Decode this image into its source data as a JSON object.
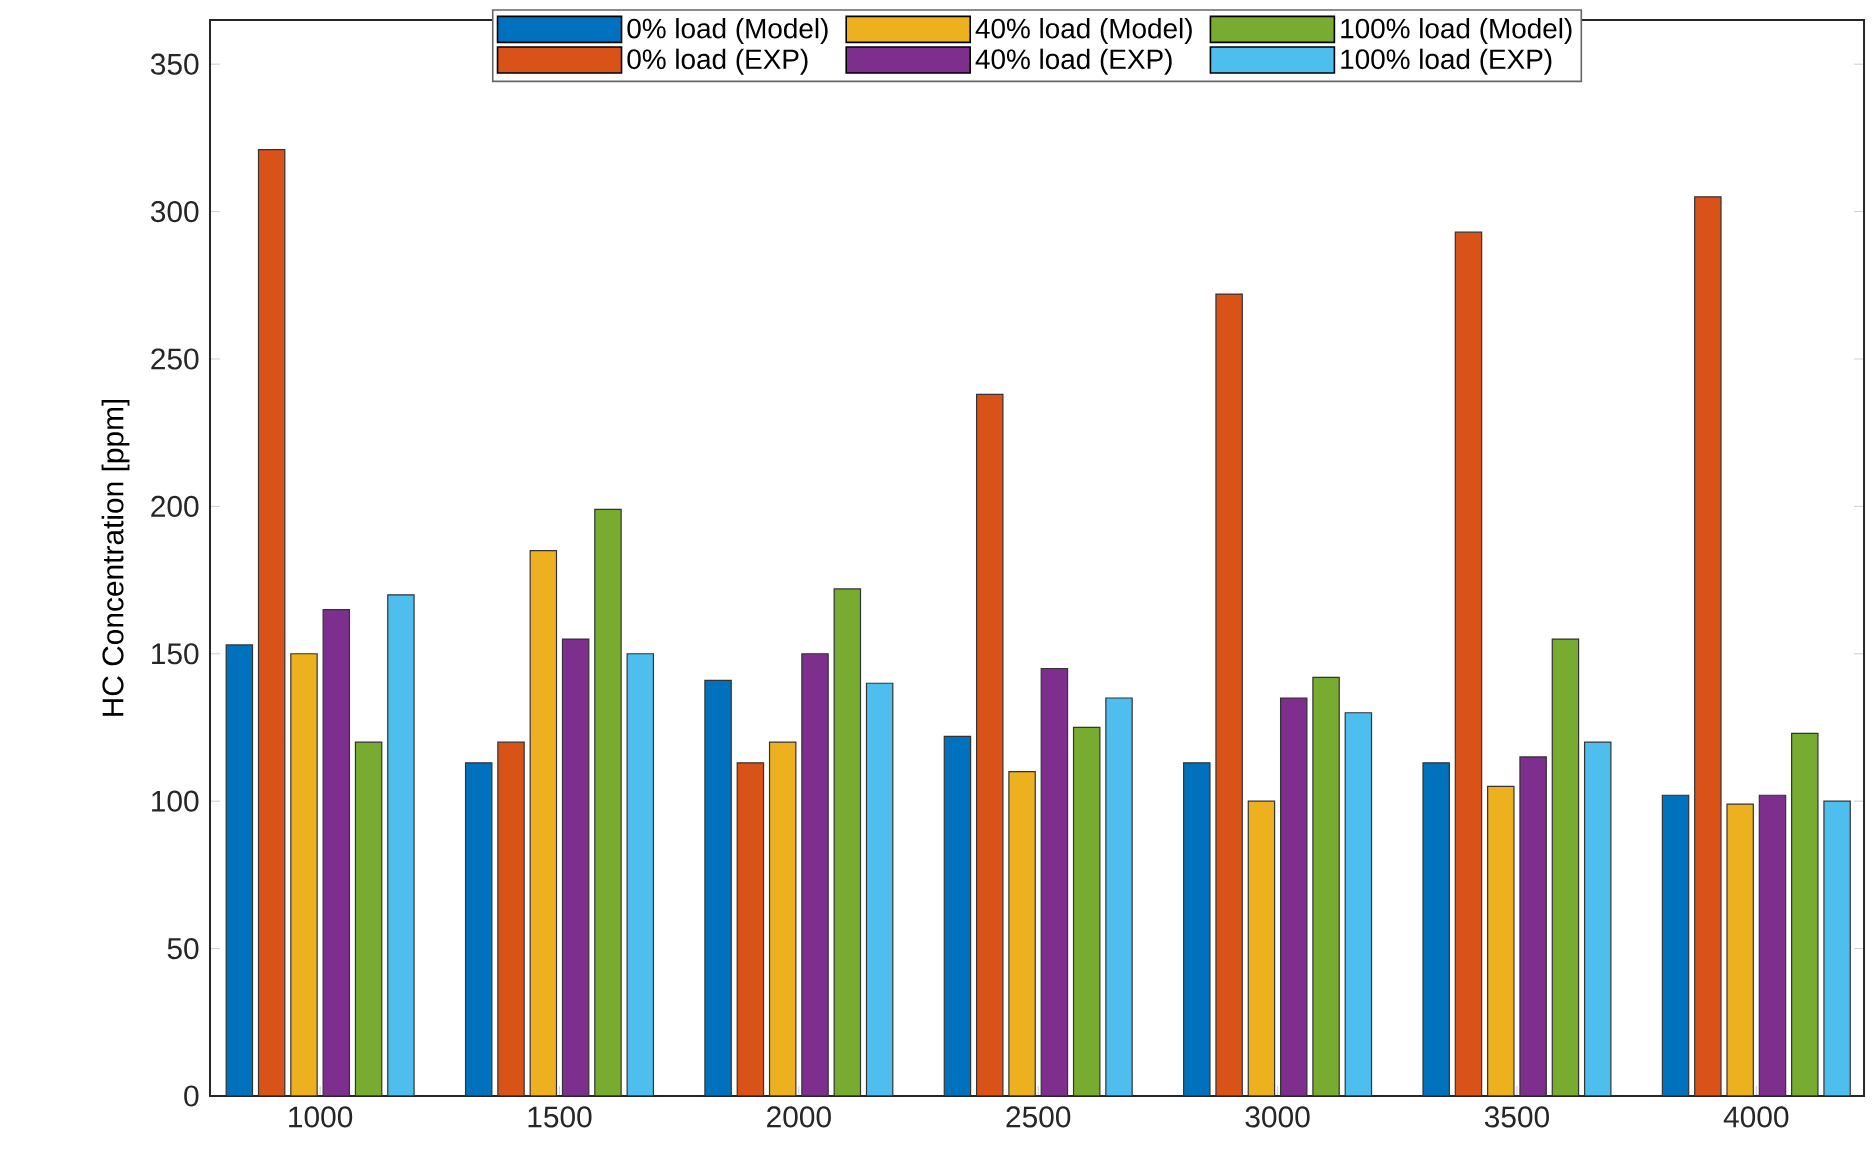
{
  "chart_data": {
    "type": "bar",
    "ylabel": "HC Concentration [ppm]",
    "categories": [
      "1000",
      "1500",
      "2000",
      "2500",
      "3000",
      "3500",
      "4000"
    ],
    "series": [
      {
        "name": "0% load (Model)",
        "color": "#0072bd",
        "values": [
          153,
          113,
          141,
          122,
          113,
          113,
          102
        ]
      },
      {
        "name": "0% load (EXP)",
        "color": "#d95319",
        "values": [
          321,
          120,
          113,
          238,
          272,
          293,
          305
        ]
      },
      {
        "name": "40% load (Model)",
        "color": "#edb120",
        "values": [
          150,
          185,
          120,
          110,
          100,
          105,
          99
        ]
      },
      {
        "name": "40% load (EXP)",
        "color": "#7e2f8e",
        "values": [
          165,
          155,
          150,
          145,
          135,
          115,
          102
        ]
      },
      {
        "name": "100% load (Model)",
        "color": "#77ac30",
        "values": [
          120,
          199,
          172,
          125,
          142,
          155,
          123
        ]
      },
      {
        "name": "100% load (EXP)",
        "color": "#4dbeee",
        "values": [
          170,
          150,
          140,
          135,
          130,
          120,
          100
        ]
      }
    ],
    "ylim": [
      0,
      365
    ],
    "yticks": [
      0,
      50,
      100,
      150,
      200,
      250,
      300,
      350
    ],
    "legend": "top"
  }
}
